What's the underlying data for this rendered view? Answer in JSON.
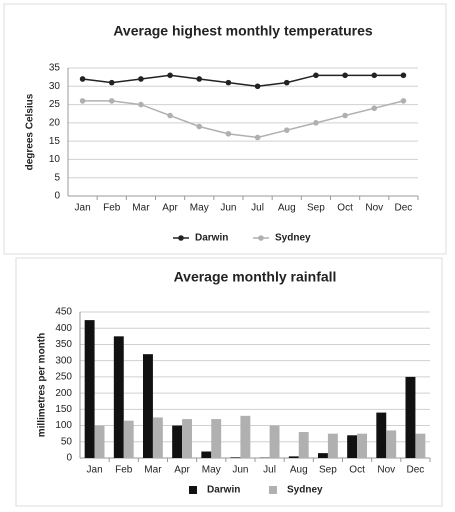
{
  "chart_data": [
    {
      "type": "line",
      "title": "Average highest monthly temperatures",
      "y_label": "degrees Celsius",
      "categories": [
        "Jan",
        "Feb",
        "Mar",
        "Apr",
        "May",
        "Jun",
        "Jul",
        "Aug",
        "Sep",
        "Oct",
        "Nov",
        "Dec"
      ],
      "series": [
        {
          "name": "Darwin",
          "color": "#222222",
          "values": [
            32,
            31,
            32,
            33,
            32,
            31,
            30,
            31,
            33,
            33,
            33,
            33
          ]
        },
        {
          "name": "Sydney",
          "color": "#b0b0b0",
          "values": [
            26,
            26,
            25,
            22,
            19,
            17,
            16,
            18,
            20,
            22,
            24,
            26
          ]
        }
      ],
      "ylim": [
        0,
        35
      ],
      "yticks": [
        0,
        5,
        10,
        15,
        20,
        25,
        30,
        35
      ],
      "grid": true,
      "legend": "bottom"
    },
    {
      "type": "bar",
      "title": "Average monthly rainfall",
      "y_label": "millimetres per month",
      "categories": [
        "Jan",
        "Feb",
        "Mar",
        "Apr",
        "May",
        "Jun",
        "Jul",
        "Aug",
        "Sep",
        "Oct",
        "Nov",
        "Dec"
      ],
      "series": [
        {
          "name": "Darwin",
          "color": "#111111",
          "values": [
            425,
            375,
            320,
            100,
            20,
            2,
            1,
            5,
            15,
            70,
            140,
            250
          ]
        },
        {
          "name": "Sydney",
          "color": "#b0b0b0",
          "values": [
            100,
            115,
            125,
            120,
            120,
            130,
            100,
            80,
            75,
            75,
            85,
            75
          ]
        }
      ],
      "ylim": [
        0,
        450
      ],
      "yticks": [
        0,
        50,
        100,
        150,
        200,
        250,
        300,
        350,
        400,
        450
      ],
      "grid": true,
      "legend": "bottom"
    }
  ]
}
